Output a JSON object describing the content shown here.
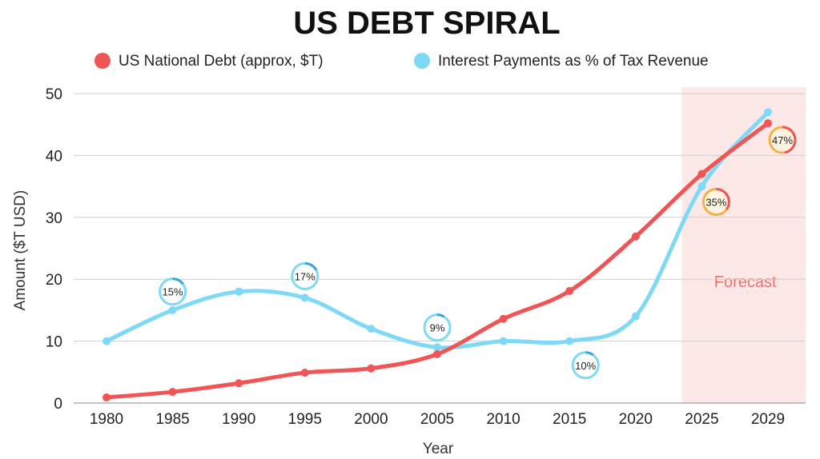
{
  "chart_data": {
    "type": "line",
    "title": "US DEBT SPIRAL",
    "xlabel": "Year",
    "ylabel": "Amount ($T USD)",
    "ylim": [
      0,
      50
    ],
    "yticks": [
      0,
      10,
      20,
      30,
      40,
      50
    ],
    "grid": "horizontal",
    "legend_position": "top",
    "categories": [
      "1980",
      "1985",
      "1990",
      "1995",
      "2000",
      "2005",
      "2010",
      "2015",
      "2020",
      "2025",
      "2029"
    ],
    "series": [
      {
        "name": "US National Debt (approx, $T)",
        "color": "#f05454",
        "values": [
          0.9,
          1.8,
          3.2,
          4.9,
          5.6,
          7.9,
          13.6,
          18.1,
          26.9,
          37,
          45.2
        ]
      },
      {
        "name": "Interest Payments as % of Tax Revenue",
        "color": "#7dd9f5",
        "values": [
          10,
          15,
          18,
          17,
          12,
          9,
          10,
          10,
          14,
          35,
          47
        ]
      }
    ],
    "forecast_region": {
      "from": "2025",
      "to": "2029",
      "label": "Forecast",
      "color": "#fde8e8"
    },
    "annotations": [
      {
        "label": "15%",
        "x": "1985",
        "y": 18,
        "style": "blue"
      },
      {
        "label": "17%",
        "x": "1995",
        "y": 20.5,
        "style": "blue"
      },
      {
        "label": "9%",
        "x": "2005",
        "y": 12.2,
        "style": "blue"
      },
      {
        "label": "10%",
        "x": "2015",
        "y": 6.1,
        "style": "blue"
      },
      {
        "label": "35%",
        "x": "2025",
        "y": 32.5,
        "style": "orange"
      },
      {
        "label": "47%",
        "x": "2029",
        "y": 42.5,
        "style": "orange"
      }
    ]
  }
}
